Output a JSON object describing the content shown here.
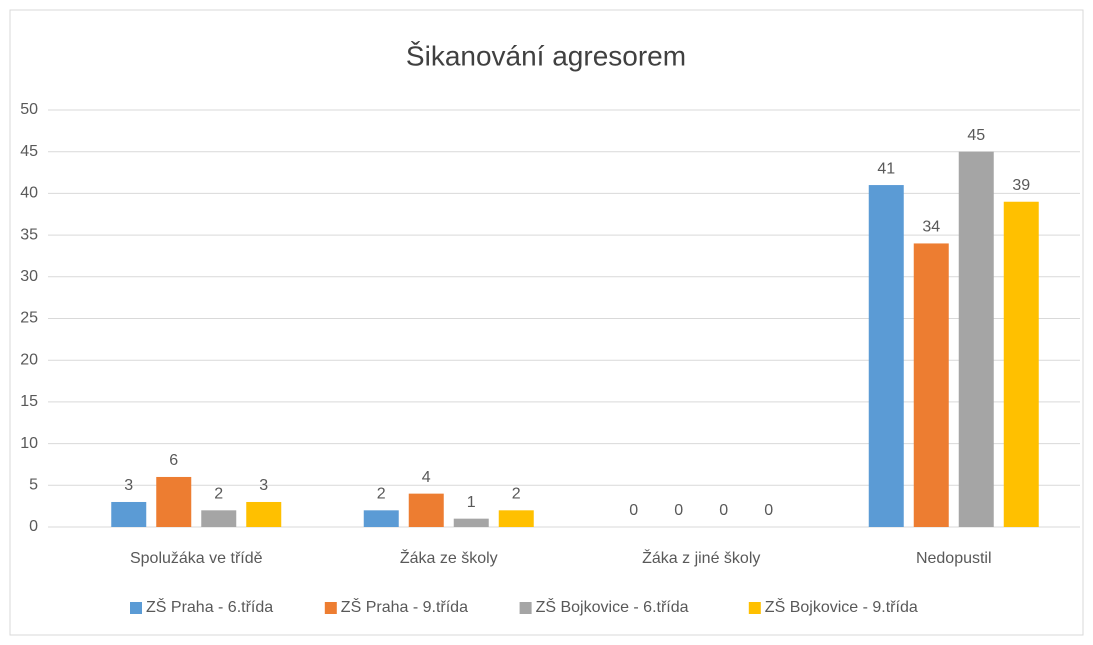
{
  "chart_data": {
    "type": "bar",
    "title": "Šikanování agresorem",
    "categories": [
      "Spolužáka ve třídě",
      "Žáka ze školy",
      "Žáka z jiné školy",
      "Nedopustil"
    ],
    "series": [
      {
        "name": "ZŠ Praha - 6.třída",
        "color": "#5b9bd5",
        "values": [
          3,
          2,
          0,
          41
        ]
      },
      {
        "name": "ZŠ Praha - 9.třída",
        "color": "#ed7d31",
        "values": [
          6,
          4,
          0,
          34
        ]
      },
      {
        "name": "ZŠ Bojkovice - 6.třída",
        "color": "#a5a5a5",
        "values": [
          2,
          1,
          0,
          45
        ]
      },
      {
        "name": "ZŠ Bojkovice - 9.třída",
        "color": "#ffc000",
        "values": [
          3,
          2,
          0,
          39
        ]
      }
    ],
    "ylim": [
      0,
      50
    ],
    "yticks": [
      0,
      5,
      10,
      15,
      20,
      25,
      30,
      35,
      40,
      45,
      50
    ],
    "grid": true,
    "legend": "bottom"
  }
}
